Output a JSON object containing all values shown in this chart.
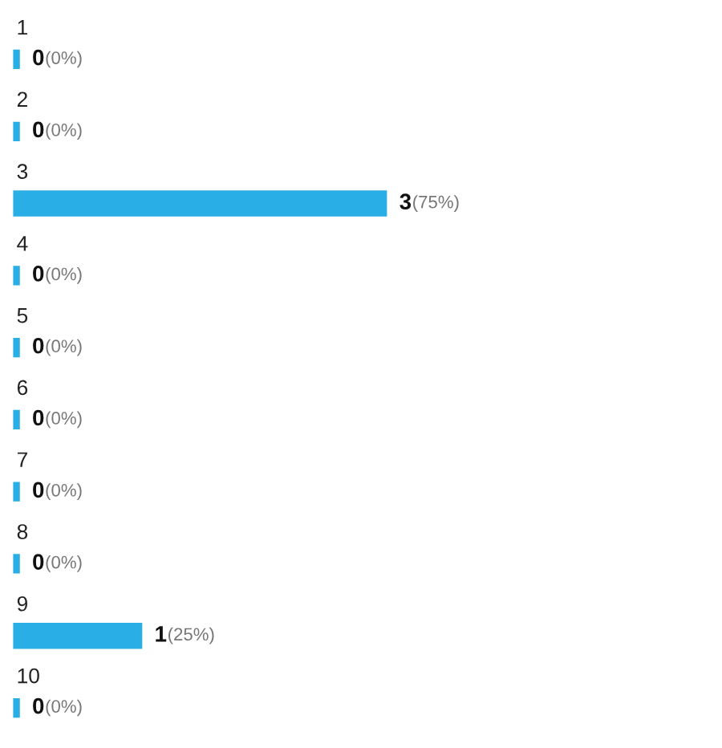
{
  "chart_data": {
    "type": "bar",
    "orientation": "horizontal",
    "categories": [
      "1",
      "2",
      "3",
      "4",
      "5",
      "6",
      "7",
      "8",
      "9",
      "10"
    ],
    "values": [
      0,
      0,
      3,
      0,
      0,
      0,
      0,
      0,
      1,
      0
    ],
    "value_labels": [
      "0 (0%)",
      "0 (0%)",
      "3 (75%)",
      "0 (0%)",
      "0 (0%)",
      "0 (0%)",
      "0 (0%)",
      "0 (0%)",
      "1 (25%)",
      "0 (0%)"
    ],
    "color": "#2aaee6"
  }
}
